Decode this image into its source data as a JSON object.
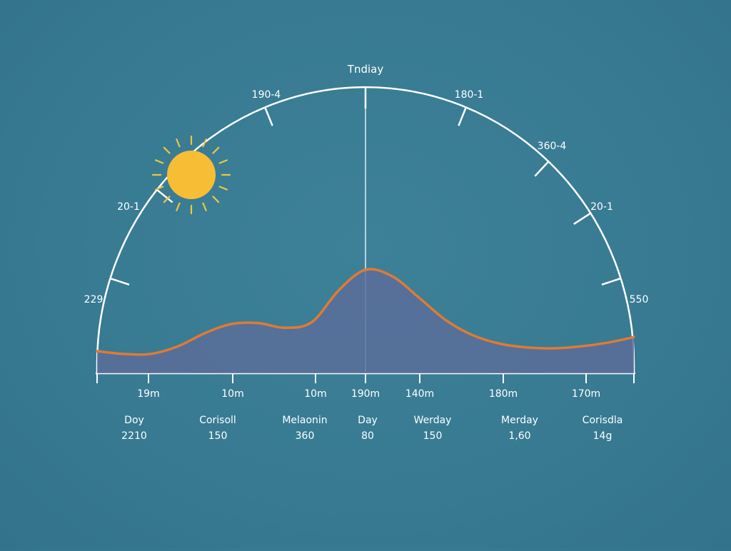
{
  "colors": {
    "background": "#377a92",
    "axis": "#ffffff",
    "curve": "#e07a35",
    "area_fill": "#5a6d9a",
    "sun": "#f7bd35",
    "sun_rays": "#f2c63a"
  },
  "icons": {
    "sun": "sun-icon"
  },
  "chart_data": {
    "type": "area",
    "title": "",
    "top_label": "Tndiay",
    "arc_tick_labels": [
      "229",
      "20-1",
      "190-4",
      "180-1",
      "360-4",
      "20-1",
      "550"
    ],
    "x_tick_labels": [
      "19m",
      "10m",
      "10m",
      "190m",
      "140m",
      "180m",
      "170m"
    ],
    "categories": [
      {
        "name": "Doy",
        "value": "2210"
      },
      {
        "name": "Corisoll",
        "value": "150"
      },
      {
        "name": "Melaonin",
        "value": "360"
      },
      {
        "name": "Day",
        "value": "80"
      },
      {
        "name": "Werday",
        "value": "150"
      },
      {
        "name": "Merday",
        "value": "1,60"
      },
      {
        "name": "Corisdla",
        "value": "14g"
      }
    ],
    "series": [
      {
        "x": [
          0,
          0.05,
          0.1,
          0.15,
          0.2,
          0.25,
          0.3,
          0.35,
          0.4,
          0.45,
          0.5,
          0.55,
          0.6,
          0.65,
          0.7,
          0.75,
          0.8,
          0.85,
          0.9,
          0.95,
          1.0
        ],
        "values": [
          0.13,
          0.1,
          0.1,
          0.18,
          0.32,
          0.42,
          0.43,
          0.38,
          0.44,
          0.78,
          1.0,
          0.93,
          0.7,
          0.46,
          0.3,
          0.21,
          0.17,
          0.16,
          0.18,
          0.22,
          0.28
        ]
      }
    ],
    "xlim": [
      0,
      1
    ],
    "ylim": [
      0,
      1
    ],
    "grid": false,
    "legend": "none"
  }
}
